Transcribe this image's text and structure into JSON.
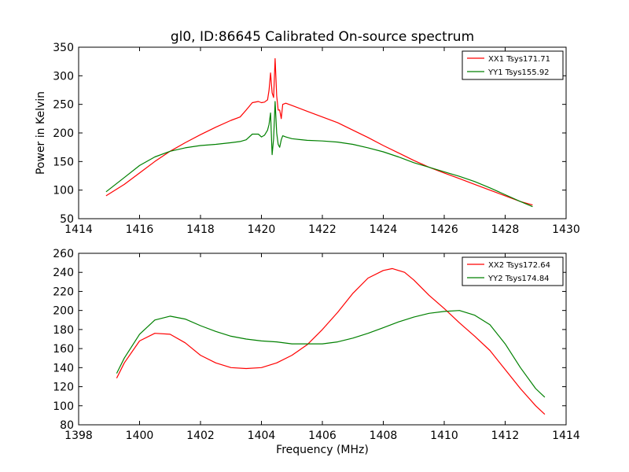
{
  "title": "gl0, ID:86645 Calibrated On-source spectrum",
  "colors": {
    "red": "#ff0000",
    "green": "#008000",
    "axes": "#000000",
    "background": "#ffffff"
  },
  "chart_data": [
    {
      "type": "line",
      "ylabel": "Power in Kelvin",
      "xlabel": "",
      "xlim": [
        1414,
        1430
      ],
      "ylim": [
        50,
        350
      ],
      "xticks": [
        1414,
        1416,
        1418,
        1420,
        1422,
        1424,
        1426,
        1428,
        1430
      ],
      "yticks": [
        50,
        100,
        150,
        200,
        250,
        300,
        350
      ],
      "grid": false,
      "legend_position": "top-right",
      "series": [
        {
          "name": "XX1 Tsys171.71",
          "color": "#ff0000",
          "x": [
            1414.9,
            1415.5,
            1416.0,
            1416.5,
            1417.0,
            1417.5,
            1418.0,
            1418.5,
            1419.0,
            1419.3,
            1419.5,
            1419.7,
            1419.9,
            1420.0,
            1420.1,
            1420.2,
            1420.25,
            1420.3,
            1420.35,
            1420.4,
            1420.45,
            1420.5,
            1420.55,
            1420.6,
            1420.65,
            1420.7,
            1420.8,
            1421.0,
            1421.5,
            1422.0,
            1422.5,
            1423.0,
            1423.5,
            1424.0,
            1424.5,
            1425.0,
            1425.5,
            1426.0,
            1426.5,
            1427.0,
            1427.5,
            1428.0,
            1428.5,
            1428.9
          ],
          "y": [
            90,
            110,
            130,
            150,
            168,
            183,
            197,
            210,
            222,
            228,
            240,
            253,
            255,
            253,
            254,
            258,
            275,
            305,
            270,
            262,
            330,
            265,
            240,
            240,
            225,
            250,
            252,
            248,
            238,
            228,
            218,
            205,
            192,
            178,
            165,
            152,
            140,
            130,
            120,
            110,
            100,
            90,
            80,
            74
          ]
        },
        {
          "name": "YY1 Tsys155.92",
          "color": "#008000",
          "x": [
            1414.9,
            1415.5,
            1416.0,
            1416.5,
            1417.0,
            1417.5,
            1418.0,
            1418.5,
            1419.0,
            1419.3,
            1419.5,
            1419.7,
            1419.9,
            1420.0,
            1420.1,
            1420.2,
            1420.25,
            1420.3,
            1420.35,
            1420.4,
            1420.45,
            1420.5,
            1420.55,
            1420.6,
            1420.65,
            1420.7,
            1420.8,
            1421.0,
            1421.5,
            1422.0,
            1422.5,
            1423.0,
            1423.5,
            1424.0,
            1424.5,
            1425.0,
            1425.5,
            1426.0,
            1426.5,
            1427.0,
            1427.5,
            1428.0,
            1428.5,
            1428.9
          ],
          "y": [
            97,
            122,
            143,
            158,
            168,
            174,
            178,
            180,
            183,
            185,
            188,
            198,
            198,
            193,
            196,
            205,
            215,
            235,
            162,
            190,
            255,
            200,
            180,
            175,
            188,
            195,
            193,
            190,
            187,
            186,
            184,
            180,
            174,
            167,
            158,
            148,
            140,
            132,
            124,
            115,
            104,
            92,
            80,
            71
          ]
        }
      ]
    },
    {
      "type": "line",
      "ylabel": "",
      "xlabel": "Frequency (MHz)",
      "xlim": [
        1398,
        1414
      ],
      "ylim": [
        80,
        260
      ],
      "xticks": [
        1398,
        1400,
        1402,
        1404,
        1406,
        1408,
        1410,
        1412,
        1414
      ],
      "yticks": [
        80,
        100,
        120,
        140,
        160,
        180,
        200,
        220,
        240,
        260
      ],
      "grid": false,
      "legend_position": "top-right",
      "series": [
        {
          "name": "XX2 Tsys172.64",
          "color": "#ff0000",
          "x": [
            1399.25,
            1399.5,
            1400.0,
            1400.5,
            1401.0,
            1401.5,
            1402.0,
            1402.5,
            1403.0,
            1403.5,
            1404.0,
            1404.5,
            1405.0,
            1405.5,
            1406.0,
            1406.5,
            1407.0,
            1407.5,
            1408.0,
            1408.3,
            1408.7,
            1409.0,
            1409.5,
            1410.0,
            1410.5,
            1411.0,
            1411.5,
            1412.0,
            1412.5,
            1413.0,
            1413.3
          ],
          "y": [
            129,
            145,
            168,
            176,
            175,
            166,
            153,
            145,
            140,
            139,
            140,
            145,
            153,
            164,
            180,
            198,
            218,
            234,
            242,
            244,
            240,
            232,
            216,
            202,
            187,
            173,
            158,
            138,
            118,
            100,
            91
          ]
        },
        {
          "name": "YY2 Tsys174.84",
          "color": "#008000",
          "x": [
            1399.25,
            1399.5,
            1400.0,
            1400.5,
            1401.0,
            1401.5,
            1402.0,
            1402.5,
            1403.0,
            1403.5,
            1404.0,
            1404.5,
            1405.0,
            1405.5,
            1406.0,
            1406.5,
            1407.0,
            1407.5,
            1408.0,
            1408.5,
            1409.0,
            1409.5,
            1410.0,
            1410.5,
            1411.0,
            1411.5,
            1412.0,
            1412.5,
            1413.0,
            1413.3
          ],
          "y": [
            134,
            150,
            175,
            190,
            194,
            191,
            184,
            178,
            173,
            170,
            168,
            167,
            165,
            165,
            165,
            167,
            171,
            176,
            182,
            188,
            193,
            197,
            199,
            200,
            195,
            185,
            165,
            140,
            118,
            109
          ]
        }
      ]
    }
  ]
}
